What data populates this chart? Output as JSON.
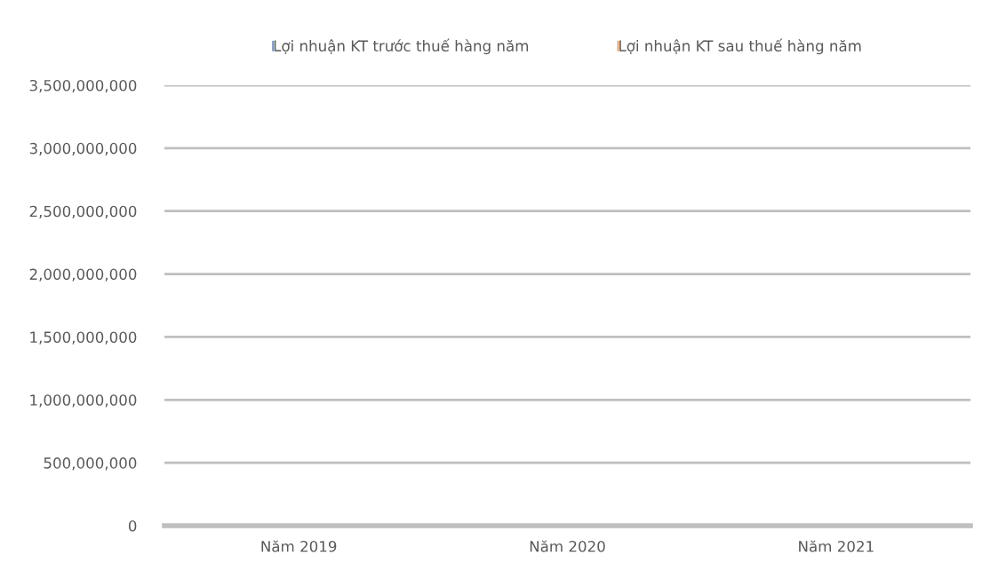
{
  "chart_data": {
    "type": "bar",
    "categories": [
      "Năm 2019",
      "Năm 2020",
      "Năm 2021"
    ],
    "series": [
      {
        "name": "Lợi nhuận KT trước thuế hàng năm",
        "color": "#4472c4",
        "values": [
          0,
          0,
          0
        ]
      },
      {
        "name": "Lợi nhuận KT sau thuế hàng năm",
        "color": "#ed7d31",
        "values": [
          0,
          0,
          0
        ]
      }
    ],
    "ylim": [
      0,
      3500000000
    ],
    "yticks": [
      {
        "value": 0,
        "label": "0"
      },
      {
        "value": 500000000,
        "label": "500,000,000"
      },
      {
        "value": 1000000000,
        "label": "1,000,000,000"
      },
      {
        "value": 1500000000,
        "label": "1,500,000,000"
      },
      {
        "value": 2000000000,
        "label": "2,000,000,000"
      },
      {
        "value": 2500000000,
        "label": "2,500,000,000"
      },
      {
        "value": 3000000000,
        "label": "3,000,000,000"
      },
      {
        "value": 3500000000,
        "label": "3,500,000,000"
      }
    ],
    "grid": "y",
    "legend": "top"
  }
}
